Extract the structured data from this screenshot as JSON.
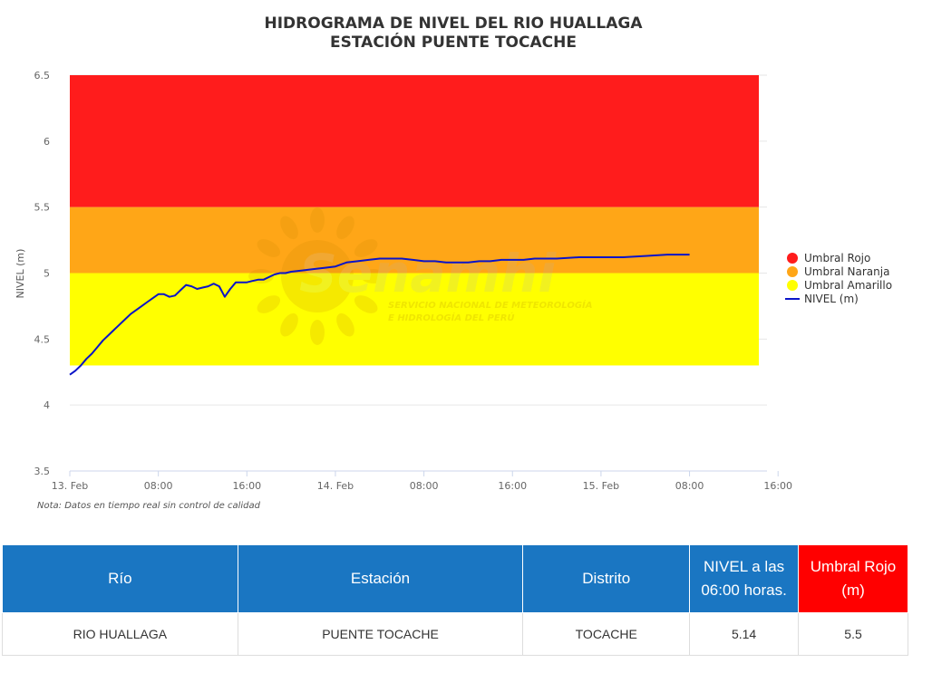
{
  "chart_data": {
    "type": "line",
    "title": "HIDROGRAMA DE NIVEL DEL RIO HUALLAGA",
    "subtitle": "ESTACIÓN PUENTE TOCACHE",
    "ylabel": "NIVEL (m)",
    "ylim": [
      3.5,
      6.5
    ],
    "yticks": [
      "3.5",
      "4",
      "4.5",
      "5",
      "5.5",
      "6",
      "6.5"
    ],
    "xticks": [
      "13. Feb",
      "08:00",
      "16:00",
      "14. Feb",
      "08:00",
      "16:00",
      "15. Feb",
      "08:00",
      "16:00"
    ],
    "xlim_hours": [
      0,
      63
    ],
    "bands": [
      {
        "name": "Umbral Rojo",
        "from": 5.5,
        "to": 6.5,
        "color": "#ff1c1c"
      },
      {
        "name": "Umbral Naranja",
        "from": 5.0,
        "to": 5.5,
        "color": "#ffa617"
      },
      {
        "name": "Umbral Amarillo",
        "from": 4.3,
        "to": 5.0,
        "color": "#ffff00"
      }
    ],
    "series": [
      {
        "name": "NIVEL (m)",
        "color": "#0b14c8",
        "x": [
          0,
          0.5,
          1,
          1.5,
          2,
          2.5,
          3,
          3.5,
          4,
          4.5,
          5,
          5.5,
          6,
          6.5,
          7,
          7.5,
          8,
          8.5,
          9,
          9.5,
          10,
          10.5,
          11,
          11.5,
          12,
          12.5,
          13,
          13.5,
          14,
          14.5,
          15,
          15.5,
          16,
          16.5,
          17,
          17.5,
          18,
          18.5,
          19,
          19.5,
          20,
          21,
          22,
          23,
          24,
          25,
          26,
          27,
          28,
          29,
          30,
          31,
          32,
          33,
          34,
          35,
          36,
          37,
          38,
          39,
          40,
          41,
          42,
          44,
          46,
          48,
          50,
          52,
          54,
          56
        ],
        "values": [
          4.23,
          4.26,
          4.3,
          4.35,
          4.39,
          4.44,
          4.49,
          4.53,
          4.57,
          4.61,
          4.65,
          4.69,
          4.72,
          4.75,
          4.78,
          4.81,
          4.84,
          4.84,
          4.82,
          4.83,
          4.87,
          4.91,
          4.9,
          4.88,
          4.89,
          4.9,
          4.92,
          4.9,
          4.82,
          4.88,
          4.93,
          4.93,
          4.93,
          4.94,
          4.95,
          4.95,
          4.97,
          4.99,
          5.0,
          5.0,
          5.01,
          5.02,
          5.03,
          5.04,
          5.05,
          5.08,
          5.09,
          5.1,
          5.11,
          5.11,
          5.11,
          5.1,
          5.09,
          5.09,
          5.08,
          5.08,
          5.08,
          5.09,
          5.09,
          5.1,
          5.1,
          5.1,
          5.11,
          5.11,
          5.12,
          5.12,
          5.12,
          5.13,
          5.14,
          5.14
        ]
      }
    ],
    "legend": "right",
    "grid": true,
    "watermark": {
      "brand": "Senamhi",
      "line1": "SERVICIO NACIONAL DE METEOROLOGÍA",
      "line2": "E HIDROLOGÍA DEL PERÚ"
    },
    "note": "Nota: Datos en tiempo real sin control de calidad"
  },
  "table": {
    "headers": [
      "Río",
      "Estación",
      "Distrito",
      "NIVEL a las 06:00 horas.",
      "Umbral Rojo (m)"
    ],
    "rows": [
      [
        "RIO HUALLAGA",
        "PUENTE TOCACHE",
        "TOCACHE",
        "5.14",
        "5.5"
      ]
    ]
  }
}
